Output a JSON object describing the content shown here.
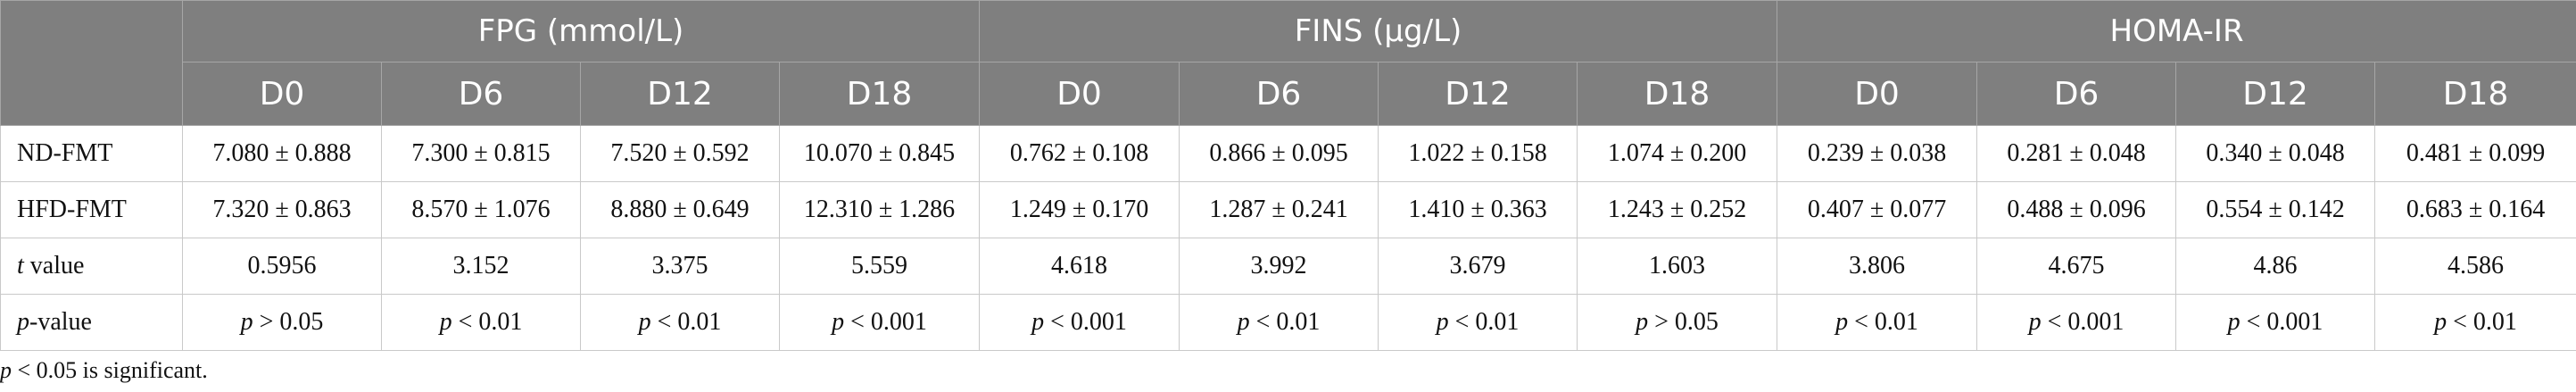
{
  "table": {
    "groups": [
      "FPG (mmol/L)",
      "FINS (μg/L)",
      "HOMA-IR"
    ],
    "days": [
      "D0",
      "D6",
      "D12",
      "D18"
    ],
    "rows": [
      {
        "label": "ND-FMT",
        "cells": [
          "7.080 ± 0.888",
          "7.300 ± 0.815",
          "7.520 ± 0.592",
          "10.070 ± 0.845",
          "0.762 ± 0.108",
          "0.866 ± 0.095",
          "1.022 ± 0.158",
          "1.074 ± 0.200",
          "0.239 ± 0.038",
          "0.281 ± 0.048",
          "0.340 ± 0.048",
          "0.481 ± 0.099"
        ]
      },
      {
        "label": "HFD-FMT",
        "cells": [
          "7.320 ± 0.863",
          "8.570 ± 1.076",
          "8.880 ± 0.649",
          "12.310 ± 1.286",
          "1.249 ± 0.170",
          "1.287 ± 0.241",
          "1.410 ± 0.363",
          "1.243 ± 0.252",
          "0.407 ± 0.077",
          "0.488 ± 0.096",
          "0.554 ± 0.142",
          "0.683 ± 0.164"
        ]
      },
      {
        "label_italic": "t",
        "label_rest": " value",
        "cells": [
          "0.5956",
          "3.152",
          "3.375",
          "5.559",
          "4.618",
          "3.992",
          "3.679",
          "1.603",
          "3.806",
          "4.675",
          "4.86",
          "4.586"
        ]
      },
      {
        "label_italic": "p",
        "label_rest": "-value",
        "cells": [
          "> 0.05",
          "< 0.01",
          "< 0.01",
          "< 0.001",
          "< 0.001",
          "< 0.01",
          "< 0.01",
          "> 0.05",
          "< 0.01",
          "< 0.001",
          "< 0.001",
          "< 0.01"
        ],
        "cell_prefix": "p"
      }
    ]
  },
  "footnote": {
    "italic": "p",
    "rest": " < 0.05 is significant."
  },
  "colors": {
    "header_bg": "#7f7f7f",
    "header_text": "#ffffff",
    "border": "#c9c9c9"
  }
}
